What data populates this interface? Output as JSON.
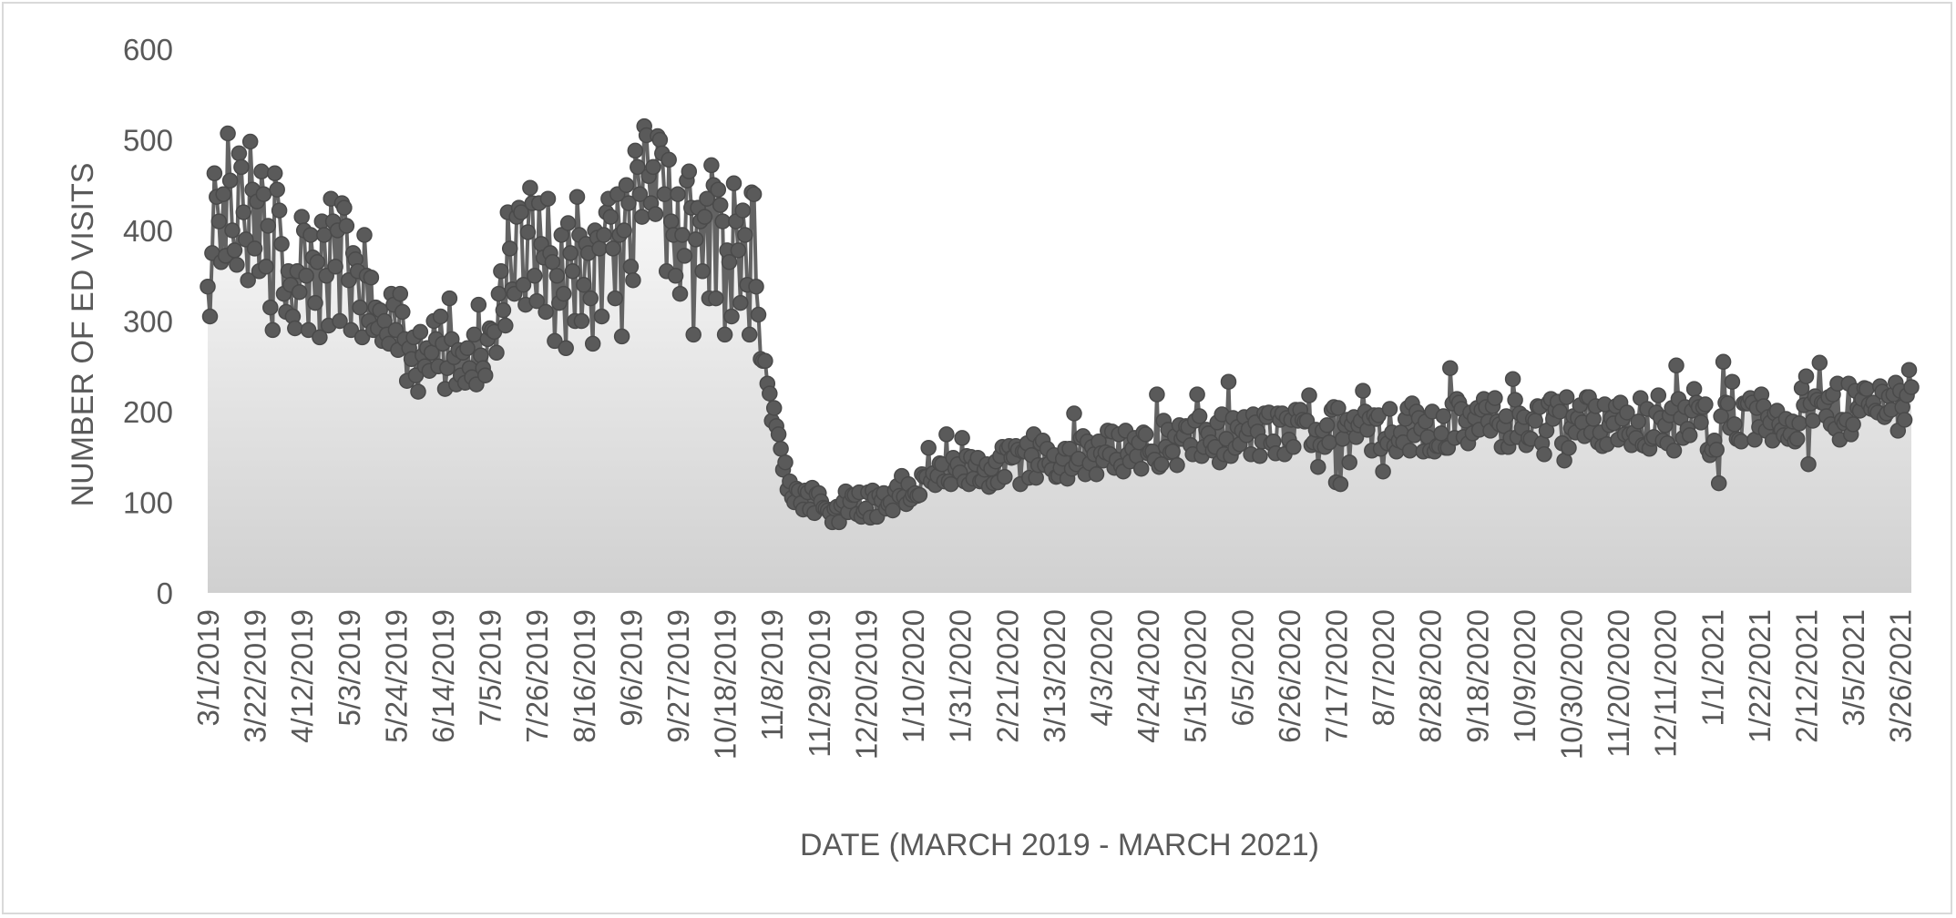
{
  "chart_data": {
    "type": "area",
    "xlabel": "DATE (MARCH 2019 - MARCH 2021)",
    "ylabel": "NUMBER OF ED VISITS",
    "ylim": [
      0,
      600
    ],
    "yticks": [
      0,
      100,
      200,
      300,
      400,
      500,
      600
    ],
    "xlim": [
      "3/1/2019",
      "3/31/2021"
    ],
    "x_tick_labels": [
      "3/1/2019",
      "3/22/2019",
      "4/12/2019",
      "5/3/2019",
      "5/24/2019",
      "6/14/2019",
      "7/5/2019",
      "7/26/2019",
      "8/16/2019",
      "9/6/2019",
      "9/27/2019",
      "10/18/2019",
      "11/8/2019",
      "11/29/2019",
      "12/20/2019",
      "1/10/2020",
      "1/31/2020",
      "2/21/2020",
      "3/13/2020",
      "4/3/2020",
      "4/24/2020",
      "5/15/2020",
      "6/5/2020",
      "6/26/2020",
      "7/17/2020",
      "8/7/2020",
      "8/28/2020",
      "9/18/2020",
      "10/9/2020",
      "10/30/2020",
      "11/20/2020",
      "12/11/2020",
      "1/1/2021",
      "1/22/2021",
      "2/12/2021",
      "3/5/2021",
      "3/26/2021"
    ],
    "grid": false,
    "legend": "none",
    "colors": {
      "line": "#636363",
      "marker": "#5a5a5a",
      "fill_top": "#ffffff",
      "fill_bottom": "#d0d0d0",
      "border": "#d9d9d9",
      "text": "#595959"
    },
    "series": [
      {
        "points": [
          [
            "3/1/2019",
            338
          ],
          [
            "3/2/2019",
            305
          ],
          [
            "3/3/2019",
            375
          ],
          [
            "3/4/2019",
            463
          ],
          [
            "3/5/2019",
            437
          ],
          [
            "3/6/2019",
            410
          ],
          [
            "3/7/2019",
            365
          ],
          [
            "3/8/2019",
            440
          ],
          [
            "3/9/2019",
            372
          ],
          [
            "3/10/2019",
            507
          ],
          [
            "3/11/2019",
            455
          ],
          [
            "3/12/2019",
            400
          ],
          [
            "3/13/2019",
            378
          ],
          [
            "3/14/2019",
            362
          ],
          [
            "3/15/2019",
            485
          ],
          [
            "3/16/2019",
            470
          ],
          [
            "3/17/2019",
            420
          ],
          [
            "3/18/2019",
            390
          ],
          [
            "3/19/2019",
            345
          ],
          [
            "3/20/2019",
            498
          ],
          [
            "3/21/2019",
            445
          ],
          [
            "3/22/2019",
            380
          ],
          [
            "3/23/2019",
            432
          ],
          [
            "3/24/2019",
            355
          ],
          [
            "3/25/2019",
            465
          ],
          [
            "3/26/2019",
            440
          ],
          [
            "3/27/2019",
            360
          ],
          [
            "3/28/2019",
            405
          ],
          [
            "3/29/2019",
            315
          ],
          [
            "3/30/2019",
            290
          ],
          [
            "3/31/2019",
            463
          ],
          [
            "4/1/2019",
            445
          ],
          [
            "4/2/2019",
            422
          ],
          [
            "4/3/2019",
            385
          ],
          [
            "4/4/2019",
            330
          ],
          [
            "4/5/2019",
            310
          ],
          [
            "4/6/2019",
            355
          ],
          [
            "4/7/2019",
            340
          ],
          [
            "4/8/2019",
            305
          ],
          [
            "4/9/2019",
            292
          ],
          [
            "4/10/2019",
            355
          ],
          [
            "4/11/2019",
            332
          ],
          [
            "4/12/2019",
            415
          ],
          [
            "4/13/2019",
            400
          ],
          [
            "4/14/2019",
            350
          ],
          [
            "4/15/2019",
            290
          ],
          [
            "4/16/2019",
            395
          ],
          [
            "4/17/2019",
            370
          ],
          [
            "4/18/2019",
            320
          ],
          [
            "4/19/2019",
            365
          ],
          [
            "4/20/2019",
            282
          ],
          [
            "4/21/2019",
            410
          ],
          [
            "4/22/2019",
            395
          ],
          [
            "4/23/2019",
            350
          ],
          [
            "4/24/2019",
            295
          ],
          [
            "4/25/2019",
            435
          ],
          [
            "4/26/2019",
            410
          ],
          [
            "4/27/2019",
            360
          ],
          [
            "4/28/2019",
            400
          ],
          [
            "4/29/2019",
            300
          ],
          [
            "4/30/2019",
            430
          ],
          [
            "5/1/2019",
            425
          ],
          [
            "5/2/2019",
            405
          ],
          [
            "5/3/2019",
            345
          ],
          [
            "5/4/2019",
            290
          ],
          [
            "5/5/2019",
            375
          ],
          [
            "5/6/2019",
            368
          ],
          [
            "5/7/2019",
            355
          ],
          [
            "5/8/2019",
            315
          ],
          [
            "5/9/2019",
            282
          ],
          [
            "5/10/2019",
            395
          ],
          [
            "5/11/2019",
            350
          ],
          [
            "5/12/2019",
            300
          ],
          [
            "5/13/2019",
            348
          ],
          [
            "5/14/2019",
            290
          ],
          [
            "5/15/2019",
            315
          ],
          [
            "5/16/2019",
            292
          ],
          [
            "5/17/2019",
            312
          ],
          [
            "5/18/2019",
            278
          ],
          [
            "5/19/2019",
            300
          ],
          [
            "5/20/2019",
            285
          ],
          [
            "5/21/2019",
            275
          ],
          [
            "5/22/2019",
            330
          ],
          [
            "5/23/2019",
            318
          ],
          [
            "5/24/2019",
            290
          ],
          [
            "5/25/2019",
            268
          ],
          [
            "5/26/2019",
            330
          ],
          [
            "5/27/2019",
            310
          ],
          [
            "5/28/2019",
            280
          ],
          [
            "5/29/2019",
            234
          ],
          [
            "5/30/2019",
            270
          ],
          [
            "5/31/2019",
            258
          ],
          [
            "6/1/2019",
            282
          ],
          [
            "6/2/2019",
            240
          ],
          [
            "6/3/2019",
            222
          ],
          [
            "6/4/2019",
            288
          ],
          [
            "6/5/2019",
            262
          ],
          [
            "6/6/2019",
            250
          ],
          [
            "6/7/2019",
            270
          ],
          [
            "6/8/2019",
            245
          ],
          [
            "6/9/2019",
            265
          ],
          [
            "6/10/2019",
            300
          ],
          [
            "6/11/2019",
            280
          ],
          [
            "6/12/2019",
            250
          ],
          [
            "6/13/2019",
            305
          ],
          [
            "6/14/2019",
            275
          ],
          [
            "6/15/2019",
            225
          ],
          [
            "6/16/2019",
            248
          ],
          [
            "6/17/2019",
            325
          ],
          [
            "6/18/2019",
            280
          ],
          [
            "6/19/2019",
            260
          ],
          [
            "6/20/2019",
            230
          ],
          [
            "6/21/2019",
            268
          ],
          [
            "6/22/2019",
            240
          ],
          [
            "6/23/2019",
            265
          ],
          [
            "6/24/2019",
            232
          ],
          [
            "6/25/2019",
            270
          ],
          [
            "6/26/2019",
            248
          ],
          [
            "6/27/2019",
            238
          ],
          [
            "6/28/2019",
            285
          ],
          [
            "6/29/2019",
            230
          ],
          [
            "6/30/2019",
            318
          ],
          [
            "7/1/2019",
            262
          ],
          [
            "7/2/2019",
            248
          ],
          [
            "7/3/2019",
            240
          ],
          [
            "7/4/2019",
            280
          ],
          [
            "7/5/2019",
            292
          ],
          [
            "7/6/2019",
            290
          ],
          [
            "7/7/2019",
            288
          ],
          [
            "7/8/2019",
            265
          ],
          [
            "7/9/2019",
            330
          ],
          [
            "7/10/2019",
            355
          ],
          [
            "7/11/2019",
            312
          ],
          [
            "7/12/2019",
            295
          ],
          [
            "7/13/2019",
            420
          ],
          [
            "7/14/2019",
            380
          ],
          [
            "7/15/2019",
            335
          ],
          [
            "7/16/2019",
            330
          ],
          [
            "7/17/2019",
            415
          ],
          [
            "7/18/2019",
            425
          ],
          [
            "7/19/2019",
            420
          ],
          [
            "7/20/2019",
            340
          ],
          [
            "7/21/2019",
            318
          ],
          [
            "7/22/2019",
            398
          ],
          [
            "7/23/2019",
            447
          ],
          [
            "7/24/2019",
            430
          ],
          [
            "7/25/2019",
            350
          ],
          [
            "7/26/2019",
            322
          ],
          [
            "7/27/2019",
            430
          ],
          [
            "7/28/2019",
            385
          ],
          [
            "7/29/2019",
            370
          ],
          [
            "7/30/2019",
            310
          ],
          [
            "7/31/2019",
            435
          ],
          [
            "8/1/2019",
            375
          ],
          [
            "8/2/2019",
            365
          ],
          [
            "8/3/2019",
            278
          ],
          [
            "8/4/2019",
            350
          ],
          [
            "8/5/2019",
            320
          ],
          [
            "8/6/2019",
            395
          ],
          [
            "8/7/2019",
            330
          ],
          [
            "8/8/2019",
            270
          ],
          [
            "8/9/2019",
            408
          ],
          [
            "8/10/2019",
            375
          ],
          [
            "8/11/2019",
            355
          ],
          [
            "8/12/2019",
            300
          ],
          [
            "8/13/2019",
            437
          ],
          [
            "8/14/2019",
            395
          ],
          [
            "8/15/2019",
            300
          ],
          [
            "8/16/2019",
            340
          ],
          [
            "8/17/2019",
            385
          ],
          [
            "8/18/2019",
            375
          ],
          [
            "8/19/2019",
            325
          ],
          [
            "8/20/2019",
            275
          ],
          [
            "8/21/2019",
            400
          ],
          [
            "8/22/2019",
            392
          ],
          [
            "8/23/2019",
            380
          ],
          [
            "8/24/2019",
            305
          ],
          [
            "8/25/2019",
            395
          ],
          [
            "8/26/2019",
            420
          ],
          [
            "8/27/2019",
            435
          ],
          [
            "8/28/2019",
            415
          ],
          [
            "8/29/2019",
            380
          ],
          [
            "8/30/2019",
            325
          ],
          [
            "8/31/2019",
            440
          ],
          [
            "9/1/2019",
            395
          ],
          [
            "9/2/2019",
            283
          ],
          [
            "9/3/2019",
            400
          ],
          [
            "9/4/2019",
            450
          ],
          [
            "9/5/2019",
            430
          ],
          [
            "9/6/2019",
            360
          ],
          [
            "9/7/2019",
            345
          ],
          [
            "9/8/2019",
            488
          ],
          [
            "9/9/2019",
            470
          ],
          [
            "9/10/2019",
            440
          ],
          [
            "9/11/2019",
            415
          ],
          [
            "9/12/2019",
            515
          ],
          [
            "9/13/2019",
            505
          ],
          [
            "9/14/2019",
            460
          ],
          [
            "9/15/2019",
            430
          ],
          [
            "9/16/2019",
            470
          ],
          [
            "9/17/2019",
            418
          ],
          [
            "9/18/2019",
            504
          ],
          [
            "9/19/2019",
            500
          ],
          [
            "9/20/2019",
            485
          ],
          [
            "9/21/2019",
            440
          ],
          [
            "9/22/2019",
            355
          ],
          [
            "9/23/2019",
            478
          ],
          [
            "9/24/2019",
            410
          ],
          [
            "9/25/2019",
            395
          ],
          [
            "9/26/2019",
            350
          ],
          [
            "9/27/2019",
            440
          ],
          [
            "9/28/2019",
            330
          ],
          [
            "9/29/2019",
            395
          ],
          [
            "9/30/2019",
            372
          ],
          [
            "10/1/2019",
            455
          ],
          [
            "10/2/2019",
            465
          ],
          [
            "10/3/2019",
            425
          ],
          [
            "10/4/2019",
            285
          ],
          [
            "10/5/2019",
            390
          ],
          [
            "10/6/2019",
            425
          ],
          [
            "10/7/2019",
            410
          ],
          [
            "10/8/2019",
            355
          ],
          [
            "10/9/2019",
            415
          ],
          [
            "10/10/2019",
            435
          ],
          [
            "10/11/2019",
            325
          ],
          [
            "10/12/2019",
            472
          ],
          [
            "10/13/2019",
            450
          ],
          [
            "10/14/2019",
            325
          ],
          [
            "10/15/2019",
            445
          ],
          [
            "10/16/2019",
            428
          ],
          [
            "10/17/2019",
            410
          ],
          [
            "10/18/2019",
            285
          ],
          [
            "10/19/2019",
            378
          ],
          [
            "10/20/2019",
            365
          ],
          [
            "10/21/2019",
            305
          ],
          [
            "10/22/2019",
            452
          ],
          [
            "10/23/2019",
            410
          ],
          [
            "10/24/2019",
            378
          ],
          [
            "10/25/2019",
            320
          ],
          [
            "10/26/2019",
            422
          ],
          [
            "10/27/2019",
            395
          ],
          [
            "10/28/2019",
            340
          ],
          [
            "10/29/2019",
            285
          ],
          [
            "10/30/2019",
            442
          ],
          [
            "10/31/2019",
            440
          ],
          [
            "11/1/2019",
            338
          ]
        ]
      }
    ]
  }
}
